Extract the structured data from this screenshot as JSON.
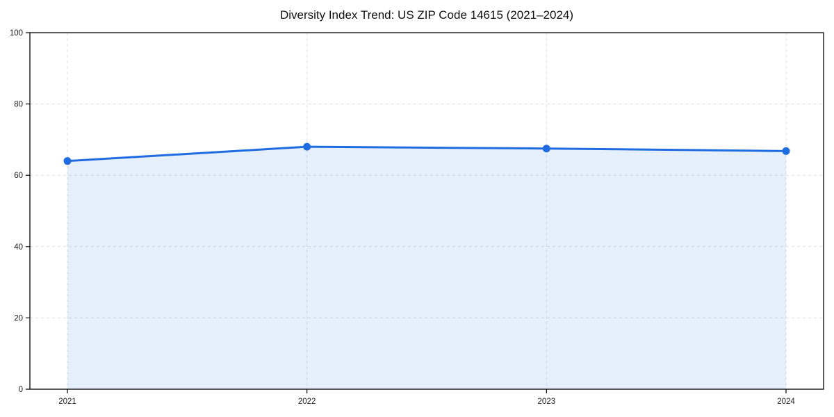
{
  "chart_data": {
    "type": "area",
    "title": "Diversity Index Trend: US ZIP Code 14615 (2021–2024)",
    "categories": [
      "2021",
      "2022",
      "2023",
      "2024"
    ],
    "values": [
      64,
      68,
      67.5,
      66.8
    ],
    "series_name": "Diversity Index",
    "xlabel": "",
    "ylabel": "",
    "ylim": [
      0,
      100
    ],
    "yticks": [
      0,
      20,
      40,
      60,
      80,
      100
    ],
    "grid": true,
    "grid_style": "dashed",
    "legend": false,
    "colors": {
      "line": "#1f6ce0",
      "marker": "#1f6ce0",
      "fill": "#1f6ce0",
      "fill_opacity": 0.11,
      "grid": "#dedede",
      "spine": "#000000",
      "tick_label": "#1a1a1a",
      "title": "#111111",
      "background": "#ffffff"
    }
  }
}
